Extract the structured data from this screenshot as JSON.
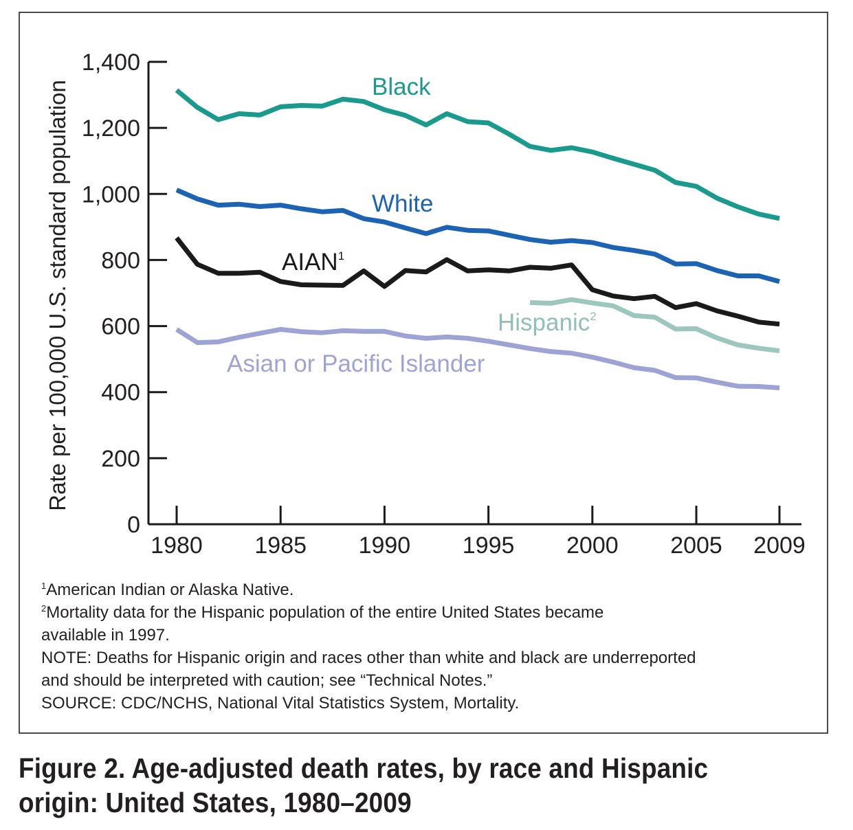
{
  "chart_data": {
    "type": "line",
    "ylabel": "Rate per 100,000 U.S. standard population",
    "xlabel": "",
    "xlim": [
      1980,
      2009
    ],
    "ylim": [
      0,
      1400
    ],
    "x_ticks": [
      1980,
      1985,
      1990,
      1995,
      2000,
      2005,
      2009
    ],
    "y_ticks": [
      0,
      200,
      400,
      600,
      800,
      1000,
      1200,
      1400
    ],
    "y_tick_labels": [
      "0",
      "200",
      "400",
      "600",
      "800",
      "1,000",
      "1,200",
      "1,400"
    ],
    "grid": false,
    "legend": "inline labels",
    "series": [
      {
        "name": "Black",
        "label": "Black",
        "footnote": "",
        "color": "#1a9a8c",
        "x": [
          1980,
          1981,
          1982,
          1983,
          1984,
          1985,
          1986,
          1987,
          1988,
          1989,
          1990,
          1991,
          1992,
          1993,
          1994,
          1995,
          1996,
          1997,
          1998,
          1999,
          2000,
          2001,
          2002,
          2003,
          2004,
          2005,
          2006,
          2007,
          2008,
          2009
        ],
        "values": [
          1314,
          1262,
          1225,
          1243,
          1239,
          1264,
          1268,
          1266,
          1287,
          1280,
          1255,
          1238,
          1209,
          1243,
          1219,
          1215,
          1181,
          1144,
          1132,
          1140,
          1127,
          1108,
          1090,
          1072,
          1035,
          1023,
          987,
          961,
          939,
          926
        ]
      },
      {
        "name": "White",
        "label": "White",
        "footnote": "",
        "color": "#1c63b3",
        "x": [
          1980,
          1981,
          1982,
          1983,
          1984,
          1985,
          1986,
          1987,
          1988,
          1989,
          1990,
          1991,
          1992,
          1993,
          1994,
          1995,
          1996,
          1997,
          1998,
          1999,
          2000,
          2001,
          2002,
          2003,
          2004,
          2005,
          2006,
          2007,
          2008,
          2009
        ],
        "values": [
          1012,
          985,
          966,
          969,
          962,
          966,
          955,
          946,
          950,
          925,
          915,
          897,
          880,
          899,
          890,
          888,
          875,
          862,
          854,
          859,
          853,
          838,
          829,
          818,
          788,
          789,
          768,
          752,
          752,
          735
        ]
      },
      {
        "name": "AIAN",
        "label": "AIAN",
        "footnote": "1",
        "color": "#1a1a1a",
        "x": [
          1980,
          1981,
          1982,
          1983,
          1984,
          1985,
          1986,
          1987,
          1988,
          1989,
          1990,
          1991,
          1992,
          1993,
          1994,
          1995,
          1996,
          1997,
          1998,
          1999,
          2000,
          2001,
          2002,
          2003,
          2004,
          2005,
          2006,
          2007,
          2008,
          2009
        ],
        "values": [
          867,
          787,
          760,
          760,
          763,
          735,
          725,
          724,
          723,
          767,
          720,
          768,
          764,
          801,
          767,
          770,
          767,
          778,
          775,
          785,
          710,
          691,
          683,
          690,
          656,
          668,
          646,
          630,
          612,
          606
        ]
      },
      {
        "name": "Hispanic",
        "label": "Hispanic",
        "footnote": "2",
        "color": "#9cc7bf",
        "x": [
          1997,
          1998,
          1999,
          2000,
          2001,
          2002,
          2003,
          2004,
          2005,
          2006,
          2007,
          2008,
          2009
        ],
        "values": [
          671,
          669,
          680,
          670,
          661,
          632,
          627,
          591,
          592,
          564,
          543,
          533,
          525
        ]
      },
      {
        "name": "Asian or Pacific Islander",
        "label": "Asian or Pacific Islander",
        "footnote": "",
        "color": "#9ea3d6",
        "x": [
          1980,
          1981,
          1982,
          1983,
          1984,
          1985,
          1986,
          1987,
          1988,
          1989,
          1990,
          1991,
          1992,
          1993,
          1994,
          1995,
          1996,
          1997,
          1998,
          1999,
          2000,
          2001,
          2002,
          2003,
          2004,
          2005,
          2006,
          2007,
          2008,
          2009
        ],
        "values": [
          590,
          550,
          552,
          566,
          578,
          590,
          583,
          580,
          586,
          584,
          584,
          570,
          563,
          567,
          563,
          554,
          543,
          532,
          523,
          518,
          506,
          491,
          474,
          466,
          444,
          443,
          430,
          418,
          417,
          413
        ]
      }
    ]
  },
  "notes": {
    "fn1_mark": "1",
    "fn1_text": "American Indian or Alaska Native.",
    "fn2_mark": "2",
    "fn2_text_line1": "Mortality data for the Hispanic population of the entire United States became",
    "fn2_text_line2": "available in 1997.",
    "note_line1": "NOTE: Deaths for Hispanic origin and races other than white and black are underreported",
    "note_line2": "and should be interpreted with caution; see “Technical Notes.”",
    "source": "SOURCE: CDC/NCHS, National Vital Statistics System, Mortality."
  },
  "caption": {
    "line1": "Figure 2. Age-adjusted death rates, by race and Hispanic",
    "line2": "origin: United States, 1980–2009"
  }
}
